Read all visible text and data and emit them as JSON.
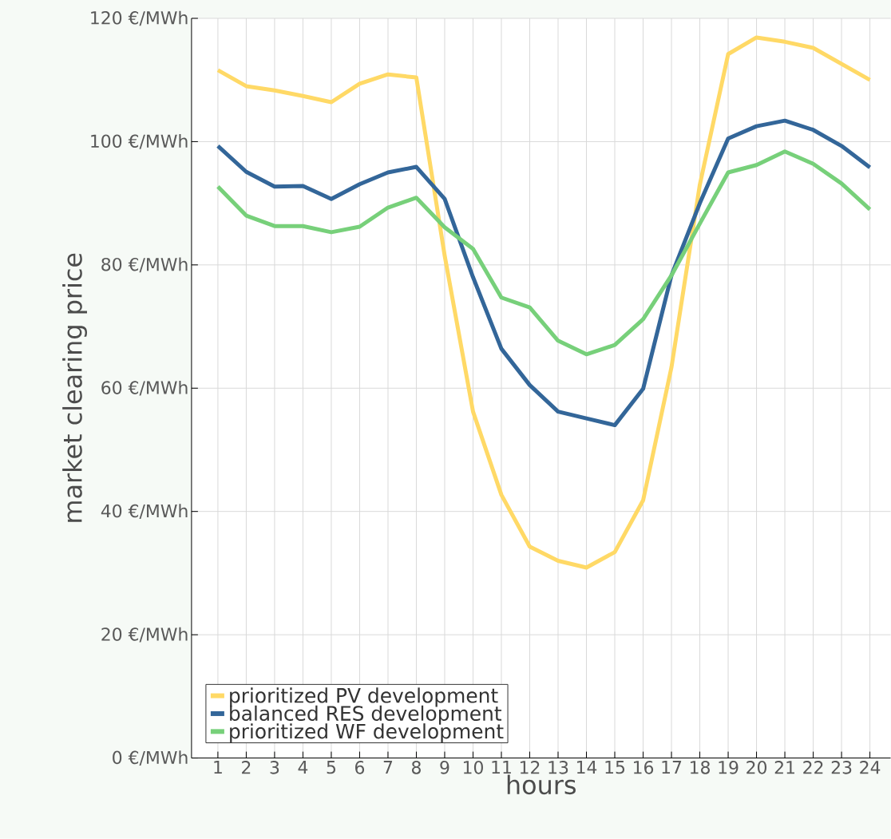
{
  "chart_data": {
    "type": "line",
    "xlabel": "hours",
    "ylabel": "market clearing price",
    "categories": [
      "1",
      "2",
      "3",
      "4",
      "5",
      "6",
      "7",
      "8",
      "9",
      "10",
      "11",
      "12",
      "13",
      "14",
      "15",
      "16",
      "17",
      "18",
      "19",
      "20",
      "21",
      "22",
      "23",
      "24"
    ],
    "series": [
      {
        "name": "prioritized PV development",
        "color": "#ffd966",
        "values": [
          111.6,
          109,
          108.3,
          107.4,
          106.4,
          109.4,
          110.9,
          110.4,
          81.5,
          56.2,
          42.7,
          34.3,
          32,
          30.9,
          33.4,
          41.8,
          63.4,
          93,
          114.2,
          116.9,
          116.2,
          115.2,
          112.6,
          110
        ]
      },
      {
        "name": "balanced RES development",
        "color": "#336699",
        "values": [
          99.3,
          95.1,
          92.7,
          92.8,
          90.7,
          93.1,
          95,
          95.9,
          90.7,
          78,
          66.4,
          60.5,
          56.2,
          55.1,
          54,
          59.9,
          78.3,
          90,
          100.5,
          102.5,
          103.4,
          101.9,
          99.3,
          95.8
        ]
      },
      {
        "name": "prioritized WF development",
        "color": "#77d07a",
        "values": [
          92.7,
          88,
          86.3,
          86.3,
          85.3,
          86.2,
          89.3,
          90.9,
          86.1,
          82.6,
          74.7,
          73.1,
          67.7,
          65.5,
          67,
          71.2,
          78.3,
          86.7,
          95,
          96.2,
          98.4,
          96.4,
          93.2,
          89
        ]
      }
    ],
    "ylim": [
      0,
      120
    ],
    "yticks": [
      {
        "value": 0,
        "label": "0 €/MWh"
      },
      {
        "value": 20,
        "label": "20 €/MWh"
      },
      {
        "value": 40,
        "label": "40 €/MWh"
      },
      {
        "value": 60,
        "label": "60 €/MWh"
      },
      {
        "value": 80,
        "label": "80 €/MWh"
      },
      {
        "value": 100,
        "label": "100 €/MWh"
      },
      {
        "value": 120,
        "label": "120 €/MWh"
      }
    ],
    "grid": true,
    "legend": "bottom left",
    "marker": "none",
    "line_style": "solid"
  }
}
